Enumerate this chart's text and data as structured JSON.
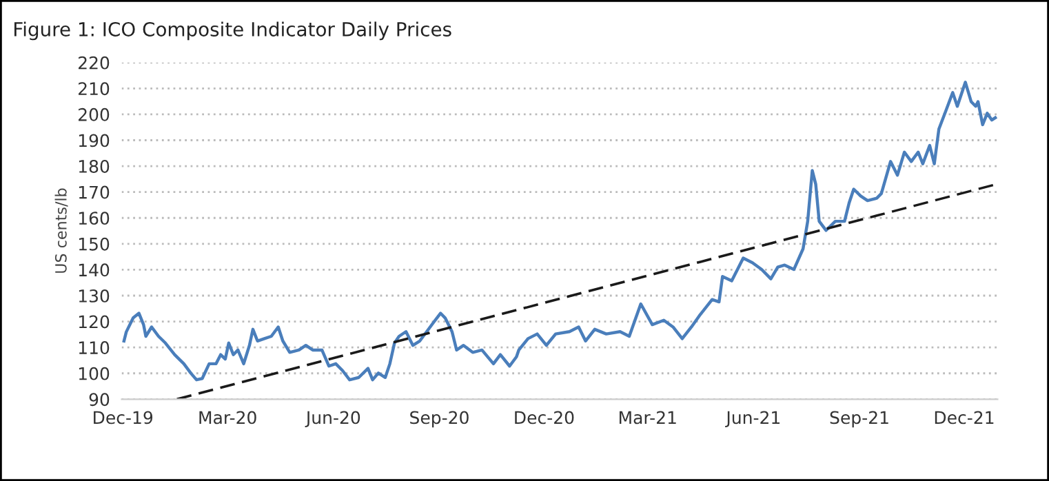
{
  "chart_data": {
    "type": "line",
    "title": "Figure 1: ICO Composite Indicator Daily Prices",
    "ylabel": "US cents/lb",
    "x": [
      "2019-12-02",
      "2019-12-04",
      "2019-12-10",
      "2019-12-15",
      "2019-12-19",
      "2019-12-21",
      "2019-12-26",
      "2020-01-01",
      "2020-01-07",
      "2020-01-15",
      "2020-01-23",
      "2020-01-29",
      "2020-02-03",
      "2020-02-08",
      "2020-02-14",
      "2020-02-20",
      "2020-02-24",
      "2020-02-28",
      "2020-03-02",
      "2020-03-06",
      "2020-03-10",
      "2020-03-15",
      "2020-03-20",
      "2020-03-23",
      "2020-03-27",
      "2020-04-02",
      "2020-04-08",
      "2020-04-14",
      "2020-04-18",
      "2020-04-24",
      "2020-05-02",
      "2020-05-08",
      "2020-05-14",
      "2020-05-22",
      "2020-05-28",
      "2020-06-03",
      "2020-06-09",
      "2020-06-15",
      "2020-06-23",
      "2020-07-01",
      "2020-07-05",
      "2020-07-10",
      "2020-07-16",
      "2020-07-20",
      "2020-07-24",
      "2020-07-28",
      "2020-08-03",
      "2020-08-09",
      "2020-08-15",
      "2020-08-21",
      "2020-08-27",
      "2020-09-02",
      "2020-09-06",
      "2020-09-12",
      "2020-09-16",
      "2020-09-22",
      "2020-09-30",
      "2020-10-08",
      "2020-10-18",
      "2020-10-24",
      "2020-11-01",
      "2020-11-07",
      "2020-11-09",
      "2020-11-17",
      "2020-11-25",
      "2020-12-03",
      "2020-12-11",
      "2020-12-23",
      "2020-12-31",
      "2021-01-06",
      "2021-01-14",
      "2021-01-24",
      "2021-02-05",
      "2021-02-13",
      "2021-02-23",
      "2021-03-05",
      "2021-03-15",
      "2021-03-23",
      "2021-03-31",
      "2021-04-08",
      "2021-04-15",
      "2021-04-26",
      "2021-05-02",
      "2021-05-05",
      "2021-05-13",
      "2021-05-19",
      "2021-05-23",
      "2021-05-31",
      "2021-06-08",
      "2021-06-16",
      "2021-06-22",
      "2021-06-28",
      "2021-07-06",
      "2021-07-14",
      "2021-07-18",
      "2021-07-22",
      "2021-07-25",
      "2021-07-28",
      "2021-08-03",
      "2021-08-11",
      "2021-08-19",
      "2021-08-23",
      "2021-08-27",
      "2021-09-02",
      "2021-09-08",
      "2021-09-16",
      "2021-09-20",
      "2021-09-24",
      "2021-09-28",
      "2021-10-04",
      "2021-10-10",
      "2021-10-16",
      "2021-10-22",
      "2021-10-26",
      "2021-11-01",
      "2021-11-05",
      "2021-11-09",
      "2021-11-15",
      "2021-11-21",
      "2021-11-25",
      "2021-12-02",
      "2021-12-07",
      "2021-12-11",
      "2021-12-13",
      "2021-12-17",
      "2021-12-21",
      "2021-12-25",
      "2021-12-28"
    ],
    "series": [
      {
        "color": "#4a7ebb",
        "line_style": "solid",
        "values": [
          112.5,
          116,
          121.4,
          123.2,
          118.8,
          114.3,
          117.9,
          114.3,
          111.7,
          107.2,
          103.7,
          100.1,
          97.5,
          98,
          103.7,
          103.7,
          107.2,
          105.5,
          111.7,
          107.2,
          109,
          103.7,
          110.8,
          117,
          112.5,
          113.4,
          114.3,
          117.9,
          112.5,
          108.1,
          109,
          110.8,
          109,
          109,
          102.8,
          103.7,
          101,
          97.5,
          98.4,
          101.9,
          97.5,
          100.1,
          98.4,
          103.7,
          111.7,
          114.3,
          116.1,
          110.8,
          112.5,
          116.1,
          119.7,
          123.2,
          121.4,
          116.1,
          109,
          110.8,
          108.1,
          109,
          103.7,
          107.2,
          102.8,
          106.4,
          109,
          113.4,
          115.2,
          110.8,
          115.2,
          116.1,
          117.9,
          112.5,
          117,
          115.2,
          116.1,
          114.3,
          126.8,
          118.8,
          120.5,
          117.9,
          113.4,
          117.9,
          122.3,
          128.5,
          127.6,
          137.4,
          135.7,
          141,
          144.5,
          142.7,
          140.1,
          136.5,
          141,
          141.8,
          140.1,
          148.1,
          158.7,
          178.3,
          173,
          158.7,
          155.2,
          158.7,
          158.7,
          165.8,
          171.1,
          168.5,
          166.7,
          167.6,
          169.4,
          175.6,
          181.8,
          176.5,
          185.4,
          181.8,
          185.4,
          180.9,
          188,
          180.9,
          194.3,
          201.3,
          208.4,
          203.1,
          212.4,
          204.9,
          203.1,
          204.9,
          196,
          200.4,
          197.8,
          198.7
        ]
      },
      {
        "color": "#1a1a1a",
        "line_style": "dashed",
        "x": [
          "2020-01-17",
          "2021-12-28"
        ],
        "values": [
          90,
          172.9
        ]
      }
    ],
    "xlim": [
      "2019-11-30",
      "2021-12-30"
    ],
    "xticks": [
      {
        "value": "2019-12-01",
        "label": "Dec-19"
      },
      {
        "value": "2020-03-01",
        "label": "Mar-20"
      },
      {
        "value": "2020-06-01",
        "label": "Jun-20"
      },
      {
        "value": "2020-09-01",
        "label": "Sep-20"
      },
      {
        "value": "2020-12-01",
        "label": "Dec-20"
      },
      {
        "value": "2021-03-01",
        "label": "Mar-21"
      },
      {
        "value": "2021-06-01",
        "label": "Jun-21"
      },
      {
        "value": "2021-09-01",
        "label": "Sep-21"
      },
      {
        "value": "2021-12-01",
        "label": "Dec-21"
      }
    ],
    "ylim": [
      90,
      220
    ],
    "yticks": [
      90,
      100,
      110,
      120,
      130,
      140,
      150,
      160,
      170,
      180,
      190,
      200,
      210,
      220
    ],
    "grid": "y",
    "marker": "none"
  }
}
